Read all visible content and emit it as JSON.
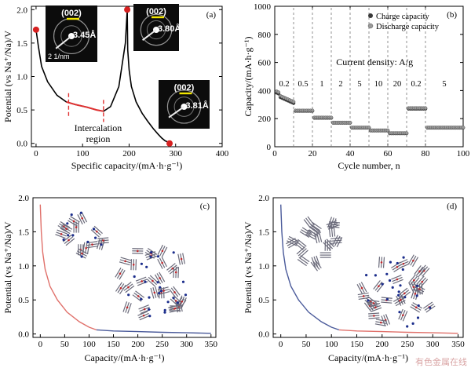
{
  "chart_data": [
    {
      "panel": "(a)",
      "type": "line",
      "xlabel": "Specific capacity/(mA·h·g⁻¹)",
      "ylabel": "Potential (vs Na⁺/Na)/V",
      "xlim": [
        -10,
        400
      ],
      "ylim": [
        -0.05,
        2.05
      ],
      "xticks": [
        0,
        100,
        200,
        300,
        400
      ],
      "yticks": [
        0,
        0.5,
        1.0,
        1.5,
        2.0
      ],
      "annotation": "Intercalation region",
      "inset_label": "(002)",
      "scale_bar": "2 1/nm",
      "d_spacings": [
        "3.45Å",
        "3.80Å",
        "3.81Å"
      ],
      "colors": {
        "curve": "#000000",
        "marker": "#d62020",
        "highlight": "#e03030"
      },
      "series": [
        {
          "x": [
            0,
            5,
            12,
            25,
            45,
            65,
            85,
            110,
            130,
            145,
            160,
            178,
            192,
            196
          ],
          "y": [
            1.7,
            1.45,
            1.15,
            0.92,
            0.72,
            0.62,
            0.58,
            0.54,
            0.5,
            0.48,
            0.55,
            0.85,
            1.5,
            2.0
          ]
        },
        {
          "x": [
            196,
            197,
            200,
            205,
            215,
            228,
            240,
            252,
            262,
            270,
            277,
            283,
            287
          ],
          "y": [
            2.0,
            1.4,
            1.1,
            0.85,
            0.62,
            0.45,
            0.33,
            0.22,
            0.14,
            0.08,
            0.04,
            0.02,
            0.0
          ]
        }
      ],
      "endpoint_markers": {
        "x": [
          0,
          196,
          287
        ],
        "y": [
          1.7,
          2.0,
          0.0
        ]
      },
      "highlight_region": {
        "x": [
          70,
          145
        ]
      }
    },
    {
      "panel": "(b)",
      "type": "scatter",
      "xlabel": "Cycle number, n",
      "ylabel": "Capacity/(mA·h·g⁻¹)",
      "xlim": [
        0,
        100
      ],
      "ylim": [
        0,
        1000
      ],
      "xticks": [
        0,
        20,
        40,
        60,
        80,
        100
      ],
      "yticks": [
        0,
        200,
        400,
        600,
        800,
        1000
      ],
      "annotation": "Current density: A/g",
      "segment_labels": [
        "0.2",
        "0.5",
        "1",
        "2",
        "5",
        "10",
        "20",
        "0.2",
        "5"
      ],
      "segment_boundaries": [
        10,
        20,
        30,
        40,
        50,
        60,
        70,
        80
      ],
      "legend": [
        "Charge capacity",
        "Discharge capacity"
      ],
      "legend_position": "top-right",
      "series": [
        {
          "name": "Charge capacity",
          "segment_values": [
            310,
            255,
            205,
            170,
            135,
            115,
            95,
            270,
            135
          ]
        },
        {
          "name": "Discharge capacity",
          "segment_values": [
            320,
            258,
            208,
            172,
            137,
            117,
            97,
            275,
            137
          ]
        }
      ]
    },
    {
      "panel": "(c)",
      "type": "line",
      "xlabel": "Capacity/(mA·h·g⁻¹)",
      "ylabel": "Potential (vs Na⁺/Na)/V",
      "xlim": [
        -15,
        360
      ],
      "ylim": [
        -0.05,
        2.0
      ],
      "xticks": [
        0,
        50,
        100,
        150,
        200,
        250,
        300,
        350
      ],
      "yticks": [
        0,
        0.5,
        1.0,
        1.5,
        2.0
      ],
      "colors": {
        "first": "#e0706a",
        "second": "#4a5a9a"
      },
      "series": [
        {
          "x": [
            0,
            2,
            5,
            10,
            20,
            35,
            55,
            80,
            100,
            115
          ],
          "y": [
            1.9,
            1.5,
            1.2,
            0.95,
            0.7,
            0.5,
            0.32,
            0.18,
            0.1,
            0.06
          ]
        },
        {
          "x": [
            115,
            150,
            200,
            250,
            300,
            350
          ],
          "y": [
            0.06,
            0.045,
            0.035,
            0.025,
            0.018,
            0.01
          ]
        }
      ]
    },
    {
      "panel": "(d)",
      "type": "line",
      "xlabel": "Capacity/(mA·h·g⁻¹)",
      "ylabel": "Potential (vs Na⁺/Na)/V",
      "xlim": [
        -15,
        360
      ],
      "ylim": [
        -0.05,
        2.0
      ],
      "xticks": [
        0,
        50,
        100,
        150,
        200,
        250,
        300,
        350
      ],
      "yticks": [
        0,
        0.5,
        1.0,
        1.5,
        2.0
      ],
      "colors": {
        "first": "#4a5a9a",
        "second": "#e0706a"
      },
      "series": [
        {
          "x": [
            0,
            2,
            5,
            10,
            20,
            35,
            55,
            80,
            100,
            115
          ],
          "y": [
            1.9,
            1.5,
            1.2,
            0.95,
            0.7,
            0.5,
            0.32,
            0.18,
            0.1,
            0.06
          ]
        },
        {
          "x": [
            115,
            150,
            200,
            250,
            300,
            350
          ],
          "y": [
            0.06,
            0.045,
            0.035,
            0.025,
            0.018,
            0.01
          ]
        }
      ]
    }
  ],
  "watermark": "有色金属在线"
}
